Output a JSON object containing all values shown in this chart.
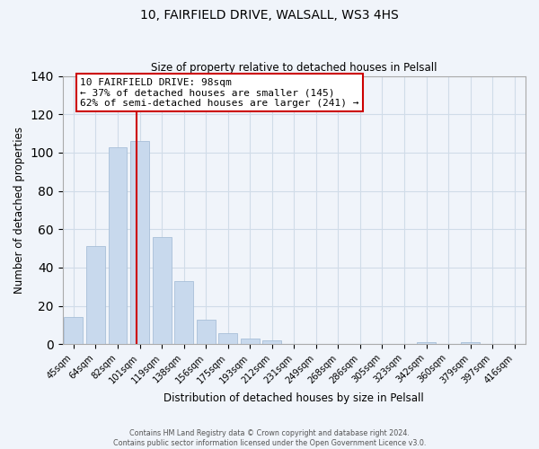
{
  "title": "10, FAIRFIELD DRIVE, WALSALL, WS3 4HS",
  "subtitle": "Size of property relative to detached houses in Pelsall",
  "xlabel": "Distribution of detached houses by size in Pelsall",
  "ylabel": "Number of detached properties",
  "categories": [
    "45sqm",
    "64sqm",
    "82sqm",
    "101sqm",
    "119sqm",
    "138sqm",
    "156sqm",
    "175sqm",
    "193sqm",
    "212sqm",
    "231sqm",
    "249sqm",
    "268sqm",
    "286sqm",
    "305sqm",
    "323sqm",
    "342sqm",
    "360sqm",
    "379sqm",
    "397sqm",
    "416sqm"
  ],
  "values": [
    14,
    51,
    103,
    106,
    56,
    33,
    13,
    6,
    3,
    2,
    0,
    0,
    0,
    0,
    0,
    0,
    1,
    0,
    1,
    0,
    0
  ],
  "bar_color": "#c8d9ed",
  "bar_edge_color": "#a8bfd8",
  "vline_color": "#cc0000",
  "ylim": [
    0,
    140
  ],
  "yticks": [
    0,
    20,
    40,
    60,
    80,
    100,
    120,
    140
  ],
  "annotation_line1": "10 FAIRFIELD DRIVE: 98sqm",
  "annotation_line2": "← 37% of detached houses are smaller (145)",
  "annotation_line3": "62% of semi-detached houses are larger (241) →",
  "annotation_box_color": "#ffffff",
  "annotation_box_edge": "#cc0000",
  "footer1": "Contains HM Land Registry data © Crown copyright and database right 2024.",
  "footer2": "Contains public sector information licensed under the Open Government Licence v3.0.",
  "grid_color": "#d0dce8",
  "background_color": "#f0f4fa"
}
